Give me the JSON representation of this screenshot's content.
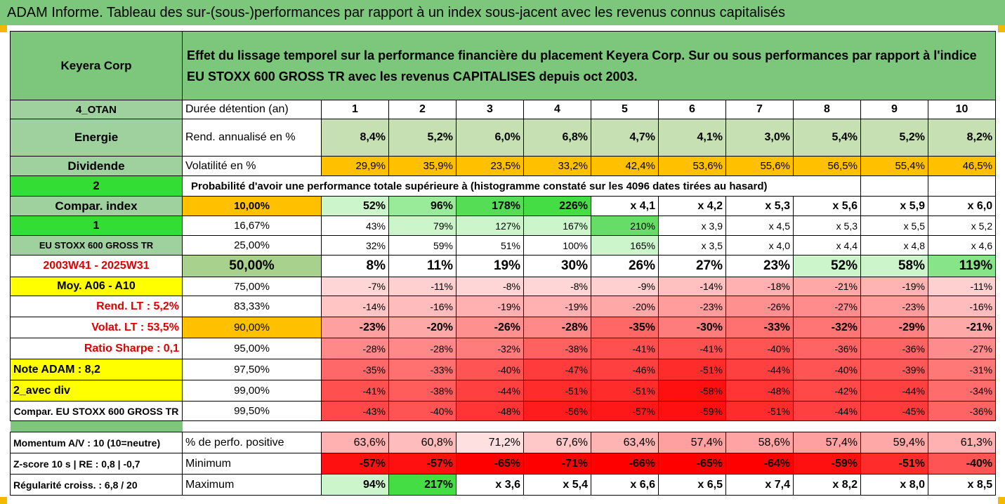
{
  "title": "ADAM Informe. Tableau des sur-(sous-)performances par rapport à un index sous-jacent avec les revenus connus capitalisés",
  "header": {
    "company": "Keyera Corp",
    "description": "Effet du lissage temporel sur la performance financière du placement Keyera Corp. Sur ou sous performances par rapport à l'indice EU STOXX 600 GROSS TR avec les revenus CAPITALISES depuis oct 2003."
  },
  "info": {
    "code": "4_OTAN",
    "sector": "Energie",
    "dividend": "Dividende",
    "num2": "2",
    "compar_index": "Compar. index",
    "num1": "1",
    "index_name": "EU STOXX 600 GROSS TR",
    "period": "2003W41 - 2025W31",
    "avg": "Moy. A06 - A10",
    "rend_lt": "Rend. LT :   5,2%",
    "volat_lt": "Volat. LT :   53,5%",
    "sharpe": "Ratio Sharpe :   0,1",
    "note": "Note ADAM : 8,2",
    "avec_div": "2_avec div",
    "compar_full": "Compar. EU STOXX 600 GROSS TR",
    "momentum": "Momentum A/V : 10 (10=neutre)",
    "zscore": "Z-score 10 s  |  RE : 0,8  |  -0,7",
    "regularite": "Régularité croiss. : 6,8 / 20"
  },
  "labels": {
    "duree": "Durée détention (an)",
    "rend": "Rend. annualisé en %",
    "vol": "Volatilité en %",
    "prob": "Probabilité d'avoir une performance totale supérieure à (histogramme constaté sur les 4096 dates tirées au hasard)",
    "pct_pos": "% de perfo. positive",
    "min": "Minimum",
    "max": "Maximum"
  },
  "years": [
    "1",
    "2",
    "3",
    "4",
    "5",
    "6",
    "7",
    "8",
    "9",
    "10"
  ],
  "rend": [
    "8,4%",
    "5,2%",
    "6,0%",
    "6,8%",
    "4,7%",
    "4,1%",
    "3,0%",
    "5,4%",
    "5,2%",
    "8,2%"
  ],
  "vol": [
    "29,9%",
    "35,9%",
    "23,5%",
    "33,2%",
    "42,4%",
    "53,6%",
    "55,6%",
    "56,5%",
    "55,4%",
    "46,5%"
  ],
  "quantiles": [
    {
      "label": "10,00%",
      "values": [
        "52%",
        "96%",
        "178%",
        "226%",
        "x 4,1",
        "x 4,2",
        "x 5,3",
        "x 5,6",
        "x 5,9",
        "x 6,0"
      ]
    },
    {
      "label": "16,67%",
      "values": [
        "43%",
        "79%",
        "127%",
        "167%",
        "210%",
        "x 3,9",
        "x 4,5",
        "x 5,3",
        "x 5,5",
        "x 5,2"
      ]
    },
    {
      "label": "25,00%",
      "values": [
        "32%",
        "59%",
        "51%",
        "100%",
        "165%",
        "x 3,5",
        "x 4,0",
        "x 4,4",
        "x 4,8",
        "x 4,6"
      ]
    },
    {
      "label": "50,00%",
      "values": [
        "8%",
        "11%",
        "19%",
        "30%",
        "26%",
        "27%",
        "23%",
        "52%",
        "58%",
        "119%"
      ]
    },
    {
      "label": "75,00%",
      "values": [
        "-7%",
        "-11%",
        "-8%",
        "-8%",
        "-9%",
        "-14%",
        "-18%",
        "-21%",
        "-19%",
        "-11%"
      ]
    },
    {
      "label": "83,33%",
      "values": [
        "-14%",
        "-16%",
        "-19%",
        "-19%",
        "-20%",
        "-23%",
        "-26%",
        "-27%",
        "-23%",
        "-16%"
      ]
    },
    {
      "label": "90,00%",
      "values": [
        "-23%",
        "-20%",
        "-26%",
        "-28%",
        "-35%",
        "-30%",
        "-33%",
        "-32%",
        "-29%",
        "-21%"
      ]
    },
    {
      "label": "95,00%",
      "values": [
        "-28%",
        "-28%",
        "-32%",
        "-38%",
        "-41%",
        "-41%",
        "-40%",
        "-36%",
        "-36%",
        "-27%"
      ]
    },
    {
      "label": "97,50%",
      "values": [
        "-35%",
        "-33%",
        "-40%",
        "-47%",
        "-46%",
        "-51%",
        "-44%",
        "-40%",
        "-39%",
        "-31%"
      ]
    },
    {
      "label": "99,00%",
      "values": [
        "-41%",
        "-38%",
        "-44%",
        "-51%",
        "-51%",
        "-58%",
        "-48%",
        "-42%",
        "-44%",
        "-34%"
      ]
    },
    {
      "label": "99,50%",
      "values": [
        "-43%",
        "-40%",
        "-48%",
        "-56%",
        "-57%",
        "-59%",
        "-51%",
        "-44%",
        "-45%",
        "-36%"
      ]
    }
  ],
  "pct_pos": [
    "63,6%",
    "60,8%",
    "71,2%",
    "67,6%",
    "63,4%",
    "57,4%",
    "58,6%",
    "57,4%",
    "59,4%",
    "61,3%"
  ],
  "min": [
    "-57%",
    "-57%",
    "-65%",
    "-71%",
    "-66%",
    "-65%",
    "-64%",
    "-59%",
    "-51%",
    "-40%"
  ],
  "max": [
    "94%",
    "217%",
    "x 3,6",
    "x 5,4",
    "x 6,6",
    "x 6,5",
    "x 7,4",
    "x 8,2",
    "x 8,0",
    "x 8,5"
  ],
  "colors": {
    "rend_bg": [
      "#c6e0b4",
      "#c6e0b4",
      "#c6e0b4",
      "#c6e0b4",
      "#c6e0b4",
      "#c6e0b4",
      "#c6e0b4",
      "#c6e0b4",
      "#c6e0b4",
      "#c6e0b4"
    ],
    "vol_bg": "#ffc000",
    "quantiles_bg": [
      [
        "#ccf5cc",
        "#99eb99",
        "#55dd55",
        "#44dd44",
        "#ffffff",
        "#ffffff",
        "#ffffff",
        "#ffffff",
        "#ffffff",
        "#ffffff"
      ],
      [
        "#ffffff",
        "#ccf5cc",
        "#ccf5cc",
        "#ccf5cc",
        "#66dd66",
        "#ffffff",
        "#ffffff",
        "#ffffff",
        "#ffffff",
        "#ffffff"
      ],
      [
        "#ffffff",
        "#ffffff",
        "#ffffff",
        "#ffffff",
        "#ccf5cc",
        "#ffffff",
        "#ffffff",
        "#ffffff",
        "#ffffff",
        "#ffffff"
      ],
      [
        "#ffffff",
        "#ffffff",
        "#ffffff",
        "#ffffff",
        "#ffffff",
        "#ffffff",
        "#ffffff",
        "#ccf5cc",
        "#ccf5cc",
        "#88e488"
      ],
      [
        "#ffd6d6",
        "#ffd0d0",
        "#ffd6d6",
        "#ffd6d6",
        "#ffd0d0",
        "#ffc0c0",
        "#ffb0b0",
        "#ffa8a8",
        "#ffb4b4",
        "#ffd0d0"
      ],
      [
        "#ffc4c4",
        "#ffbcbc",
        "#ffb0b0",
        "#ffb0b0",
        "#ffa8a8",
        "#ff9c9c",
        "#ff9090",
        "#ff8c8c",
        "#ff9c9c",
        "#ffbcbc"
      ],
      [
        "#ffa0a0",
        "#ffa8a8",
        "#ff9090",
        "#ff8888",
        "#ff6666",
        "#ff7c7c",
        "#ff7070",
        "#ff7474",
        "#ff8080",
        "#ffa8a8"
      ],
      [
        "#ff8888",
        "#ff8888",
        "#ff7c7c",
        "#ff6060",
        "#ff5050",
        "#ff5050",
        "#ff5454",
        "#ff6464",
        "#ff6464",
        "#ff8c8c"
      ],
      [
        "#ff6868",
        "#ff7070",
        "#ff5454",
        "#ff3c3c",
        "#ff4040",
        "#ff2c2c",
        "#ff4040",
        "#ff5454",
        "#ff5858",
        "#ff7878"
      ],
      [
        "#ff5050",
        "#ff5c5c",
        "#ff4040",
        "#ff2c2c",
        "#ff2c2c",
        "#ff1010",
        "#ff3434",
        "#ff4848",
        "#ff4040",
        "#ff6c6c"
      ],
      [
        "#ff4848",
        "#ff5454",
        "#ff3434",
        "#ff1c1c",
        "#ff1818",
        "#ff1010",
        "#ff2c2c",
        "#ff4040",
        "#ff3c3c",
        "#ff6464"
      ]
    ],
    "pct_pos_bg": [
      "#ffb0b0",
      "#ffbcbc",
      "#ffe0e0",
      "#ffc8c8",
      "#ffb4b4",
      "#ffa0a0",
      "#ffa4a4",
      "#ffa0a0",
      "#ffa8a8",
      "#ffb0b0"
    ],
    "min_bg": [
      "#ff1010",
      "#ff1010",
      "#ff0000",
      "#ff0000",
      "#ff0000",
      "#ff0000",
      "#ff0000",
      "#ff1010",
      "#ff2c2c",
      "#ff5454"
    ],
    "max_bg": [
      "#ccf5cc",
      "#44dd44",
      "#ffffff",
      "#ffffff",
      "#ffffff",
      "#ffffff",
      "#ffffff",
      "#ffffff",
      "#ffffff",
      "#ffffff"
    ]
  }
}
